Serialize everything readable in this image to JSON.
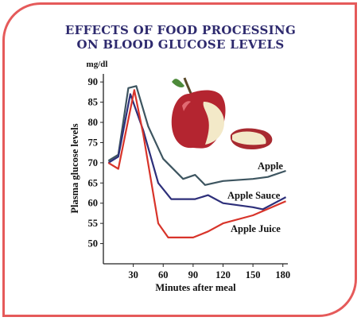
{
  "title_line1": "EFFECTS OF FOOD PROCESSING",
  "title_line2": "ON BLOOD GLUCOSE LEVELS",
  "chart_data": {
    "type": "line",
    "title": "EFFECTS OF FOOD PROCESSING ON BLOOD GLUCOSE LEVELS",
    "xlabel": "Minutes after meal",
    "ylabel": "Plasma glucose levels",
    "yunit": "mg/dl",
    "xlim": [
      0,
      185
    ],
    "ylim": [
      45,
      92
    ],
    "xticks": [
      30,
      60,
      90,
      120,
      150,
      180
    ],
    "yticks": [
      50,
      55,
      60,
      65,
      70,
      75,
      80,
      85,
      90
    ],
    "grid": false,
    "series": [
      {
        "name": "Apple",
        "color": "#3d5560",
        "points": [
          [
            5,
            70.5
          ],
          [
            15,
            72
          ],
          [
            25,
            88.5
          ],
          [
            33,
            89
          ],
          [
            45,
            79
          ],
          [
            60,
            71
          ],
          [
            80,
            66
          ],
          [
            92,
            67
          ],
          [
            102,
            64.5
          ],
          [
            120,
            65.5
          ],
          [
            150,
            66
          ],
          [
            165,
            66.5
          ],
          [
            183,
            68
          ]
        ]
      },
      {
        "name": "Apple Sauce",
        "color": "#2d2f7a",
        "points": [
          [
            5,
            70
          ],
          [
            15,
            71.5
          ],
          [
            27,
            87
          ],
          [
            40,
            78
          ],
          [
            55,
            65
          ],
          [
            68,
            61
          ],
          [
            92,
            61
          ],
          [
            105,
            62
          ],
          [
            120,
            60
          ],
          [
            150,
            59
          ],
          [
            160,
            58.5
          ],
          [
            183,
            61.5
          ]
        ]
      },
      {
        "name": "Apple Juice",
        "color": "#d8342a",
        "points": [
          [
            5,
            70
          ],
          [
            15,
            68.5
          ],
          [
            31,
            88
          ],
          [
            40,
            77
          ],
          [
            55,
            55
          ],
          [
            65,
            51.5
          ],
          [
            90,
            51.5
          ],
          [
            105,
            53
          ],
          [
            120,
            55
          ],
          [
            150,
            57
          ],
          [
            183,
            60.5
          ]
        ]
      }
    ],
    "annotations": [
      "Apple",
      "Apple Sauce",
      "Apple Juice"
    ]
  }
}
